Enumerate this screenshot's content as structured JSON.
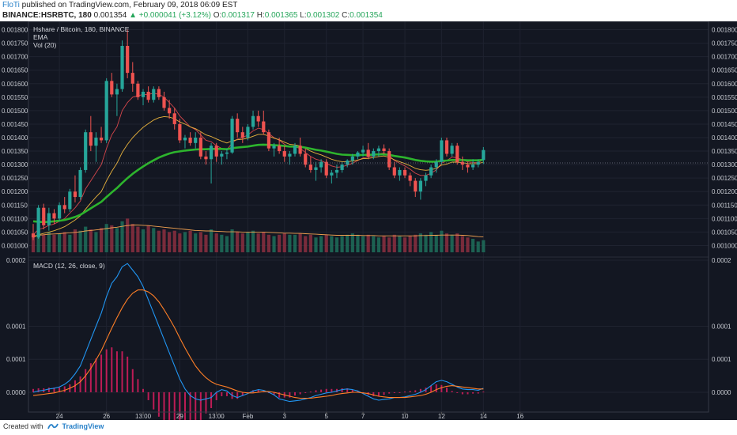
{
  "header": {
    "author": "FloTi",
    "published_text": "published on TradingView.com, February 09, 2018 06:09 EST",
    "symbol": "BINANCE:HSRBTC, 180",
    "last": "0.001354",
    "change": "▲ +0.000041 (+3.12%)",
    "o_label": "O:",
    "o_value": "0.001317",
    "h_label": "H:",
    "h_value": "0.001365",
    "l_label": "L:",
    "l_value": "0.001302",
    "c_label": "C:",
    "c_value": "0.001354"
  },
  "legend": {
    "title": "Hshare / Bitcoin, 180, BINANCE",
    "ema": "EMA",
    "vol": "Vol (20)",
    "macd": "MACD (12, 26, close, 9)"
  },
  "price_axis": [
    "0.001800",
    "0.001750",
    "0.001700",
    "0.001650",
    "0.001600",
    "0.001550",
    "0.001500",
    "0.001450",
    "0.001400",
    "0.001350",
    "0.001300",
    "0.001250",
    "0.001200",
    "0.001150",
    "0.001100",
    "0.001050",
    "0.001000"
  ],
  "macd_axis": [
    "0.0002",
    "0.0001",
    "0.0001",
    "0.0000"
  ],
  "time_axis": [
    "24",
    "26",
    "13:00",
    "29",
    "13:00",
    "Feb",
    "3",
    "5",
    "7",
    "10",
    "12",
    "14",
    "16"
  ],
  "footer": {
    "created_with": "Created with",
    "brand": "TradingView"
  },
  "colors": {
    "background": "#131722",
    "up": "#26a69a",
    "down": "#ef5350",
    "ema_slow": "#2db42d",
    "macd_line": "#2196f3",
    "signal_line": "#ff7f27",
    "histogram": "#e91e63"
  },
  "chart_data": {
    "type": "candlestick",
    "price_range": [
      0.000975,
      0.001825
    ],
    "macd_range": [
      -3e-05,
      0.0002
    ],
    "candles": [
      [
        0.001045,
        0.00108,
        0.00102,
        0.00103
      ],
      [
        0.00103,
        0.00115,
        0.001025,
        0.00114
      ],
      [
        0.00114,
        0.001155,
        0.00106,
        0.001075
      ],
      [
        0.001075,
        0.00114,
        0.001055,
        0.00112
      ],
      [
        0.00112,
        0.001135,
        0.00108,
        0.0011
      ],
      [
        0.0011,
        0.00116,
        0.00109,
        0.00115
      ],
      [
        0.00115,
        0.00118,
        0.00112,
        0.001135
      ],
      [
        0.001135,
        0.00121,
        0.001125,
        0.0012
      ],
      [
        0.0012,
        0.00126,
        0.00116,
        0.00118
      ],
      [
        0.00118,
        0.00129,
        0.00117,
        0.00128
      ],
      [
        0.00128,
        0.00143,
        0.00127,
        0.00142
      ],
      [
        0.00142,
        0.00148,
        0.00135,
        0.00137
      ],
      [
        0.00137,
        0.00142,
        0.00131,
        0.0014
      ],
      [
        0.0014,
        0.00144,
        0.00138,
        0.00139
      ],
      [
        0.00139,
        0.00162,
        0.00138,
        0.00161
      ],
      [
        0.00161,
        0.00164,
        0.00155,
        0.00156
      ],
      [
        0.00156,
        0.0016,
        0.00148,
        0.00158
      ],
      [
        0.00158,
        0.00176,
        0.00157,
        0.00174
      ],
      [
        0.00174,
        0.0018,
        0.00162,
        0.00164
      ],
      [
        0.00164,
        0.00168,
        0.00157,
        0.0016
      ],
      [
        0.0016,
        0.00161,
        0.00154,
        0.00155
      ],
      [
        0.00155,
        0.00158,
        0.00152,
        0.00157
      ],
      [
        0.00157,
        0.00159,
        0.00153,
        0.00154
      ],
      [
        0.00154,
        0.00159,
        0.00153,
        0.00158
      ],
      [
        0.00158,
        0.00159,
        0.00154,
        0.00155
      ],
      [
        0.00155,
        0.00157,
        0.0015,
        0.00151
      ],
      [
        0.00151,
        0.00154,
        0.00147,
        0.00149
      ],
      [
        0.00149,
        0.00151,
        0.00143,
        0.00145
      ],
      [
        0.00145,
        0.00147,
        0.00138,
        0.00139
      ],
      [
        0.00139,
        0.00141,
        0.00136,
        0.0014
      ],
      [
        0.0014,
        0.00142,
        0.00137,
        0.00138
      ],
      [
        0.00138,
        0.00142,
        0.00136,
        0.0014
      ],
      [
        0.0014,
        0.00142,
        0.00132,
        0.00133
      ],
      [
        0.00133,
        0.00135,
        0.0013,
        0.00132
      ],
      [
        0.00132,
        0.00138,
        0.00123,
        0.00137
      ],
      [
        0.00137,
        0.00138,
        0.00131,
        0.00133
      ],
      [
        0.00133,
        0.00135,
        0.0013,
        0.00134
      ],
      [
        0.00134,
        0.00136,
        0.00132,
        0.001345
      ],
      [
        0.001345,
        0.00148,
        0.00134,
        0.00147
      ],
      [
        0.00147,
        0.00149,
        0.0014,
        0.00142
      ],
      [
        0.00142,
        0.00144,
        0.00138,
        0.0014
      ],
      [
        0.0014,
        0.00145,
        0.00139,
        0.00144
      ],
      [
        0.00144,
        0.0015,
        0.00143,
        0.00148
      ],
      [
        0.00148,
        0.0015,
        0.00144,
        0.00146
      ],
      [
        0.00146,
        0.0015,
        0.00141,
        0.00142
      ],
      [
        0.00142,
        0.00143,
        0.00135,
        0.00136
      ],
      [
        0.00136,
        0.00138,
        0.00133,
        0.00137
      ],
      [
        0.00137,
        0.0014,
        0.00134,
        0.00135
      ],
      [
        0.00135,
        0.00137,
        0.00131,
        0.00133
      ],
      [
        0.00133,
        0.00135,
        0.0013,
        0.00134
      ],
      [
        0.00134,
        0.00138,
        0.00133,
        0.00137
      ],
      [
        0.00137,
        0.0014,
        0.00133,
        0.00134
      ],
      [
        0.00134,
        0.00136,
        0.00129,
        0.0013
      ],
      [
        0.0013,
        0.00133,
        0.00127,
        0.00128
      ],
      [
        0.00128,
        0.00131,
        0.00124,
        0.00129
      ],
      [
        0.00129,
        0.00132,
        0.00127,
        0.00131
      ],
      [
        0.00131,
        0.00132,
        0.00125,
        0.00126
      ],
      [
        0.00126,
        0.00128,
        0.00123,
        0.00127
      ],
      [
        0.00127,
        0.0013,
        0.00125,
        0.00128
      ],
      [
        0.00128,
        0.00131,
        0.00127,
        0.0013
      ],
      [
        0.0013,
        0.00132,
        0.00129,
        0.001315
      ],
      [
        0.001315,
        0.00134,
        0.0013,
        0.00133
      ],
      [
        0.00133,
        0.00135,
        0.00132,
        0.001345
      ],
      [
        0.001345,
        0.00137,
        0.00133,
        0.001355
      ],
      [
        0.001355,
        0.00138,
        0.00132,
        0.00133
      ],
      [
        0.00133,
        0.00136,
        0.00132,
        0.00135
      ],
      [
        0.00135,
        0.00137,
        0.00133,
        0.00136
      ],
      [
        0.00136,
        0.001375,
        0.00134,
        0.00135
      ],
      [
        0.00135,
        0.00136,
        0.00128,
        0.00129
      ],
      [
        0.00129,
        0.00131,
        0.00125,
        0.00126
      ],
      [
        0.00126,
        0.00129,
        0.00124,
        0.00128
      ],
      [
        0.00128,
        0.00129,
        0.00125,
        0.00126
      ],
      [
        0.00126,
        0.00127,
        0.00122,
        0.00124
      ],
      [
        0.00124,
        0.00125,
        0.00118,
        0.0012
      ],
      [
        0.0012,
        0.00125,
        0.00117,
        0.00124
      ],
      [
        0.00124,
        0.00127,
        0.00122,
        0.00126
      ],
      [
        0.00126,
        0.0013,
        0.00125,
        0.00129
      ],
      [
        0.00129,
        0.00132,
        0.00127,
        0.00131
      ],
      [
        0.00131,
        0.0014,
        0.0013,
        0.00139
      ],
      [
        0.00139,
        0.0014,
        0.00133,
        0.00134
      ],
      [
        0.00134,
        0.00138,
        0.00133,
        0.00137
      ],
      [
        0.00137,
        0.00138,
        0.0013,
        0.00131
      ],
      [
        0.00131,
        0.00133,
        0.00128,
        0.0013
      ],
      [
        0.0013,
        0.00131,
        0.00127,
        0.00129
      ],
      [
        0.00129,
        0.00132,
        0.00128,
        0.0013
      ],
      [
        0.0013,
        0.00132,
        0.00129,
        0.00131
      ],
      [
        0.001317,
        0.001365,
        0.001302,
        0.001354
      ]
    ],
    "volumes": [
      0.00103,
      0.00106,
      0.00104,
      0.00105,
      0.00104,
      0.001045,
      0.00105,
      0.00104,
      0.00106,
      0.001055,
      0.00107,
      0.00106,
      0.00105,
      0.001065,
      0.00108,
      0.001075,
      0.001065,
      0.00109,
      0.0011,
      0.00108,
      0.00107,
      0.00106,
      0.001075,
      0.001065,
      0.001055,
      0.00106,
      0.00105,
      0.001055,
      0.001045,
      0.00105,
      0.001055,
      0.001045,
      0.00105,
      0.00104,
      0.00106,
      0.001045,
      0.00104,
      0.001035,
      0.00106,
      0.00105,
      0.001045,
      0.00105,
      0.001055,
      0.001045,
      0.00105,
      0.00104,
      0.001035,
      0.00104,
      0.001045,
      0.00104,
      0.00104,
      0.001045,
      0.001035,
      0.00104,
      0.00103,
      0.001035,
      0.00104,
      0.001035,
      0.00103,
      0.001035,
      0.00104,
      0.001045,
      0.00104,
      0.001035,
      0.00104,
      0.001035,
      0.00103,
      0.001035,
      0.00103,
      0.00104,
      0.001035,
      0.00103,
      0.001035,
      0.00104,
      0.001045,
      0.00104,
      0.00105,
      0.00104,
      0.001055,
      0.001045,
      0.00104,
      0.001045,
      0.001035,
      0.00103,
      0.001025,
      0.001015,
      0.00102
    ],
    "ema_fast": [
      0.00104,
      0.00106,
      0.001065,
      0.001075,
      0.00108,
      0.00109,
      0.0011,
      0.00112,
      0.00114,
      0.001165,
      0.00121,
      0.00124,
      0.00127,
      0.0013,
      0.00136,
      0.00141,
      0.00144,
      0.0015,
      0.00153,
      0.00155,
      0.001555,
      0.00156,
      0.00156,
      0.001565,
      0.00156,
      0.00155,
      0.00153,
      0.00151,
      0.00148,
      0.00146,
      0.00144,
      0.00143,
      0.00141,
      0.00139,
      0.001385,
      0.00137,
      0.00136,
      0.001355,
      0.00138,
      0.001395,
      0.0014,
      0.00141,
      0.001425,
      0.001435,
      0.00143,
      0.001415,
      0.0014,
      0.00139,
      0.001375,
      0.001365,
      0.001365,
      0.00136,
      0.001345,
      0.00133,
      0.00132,
      0.001315,
      0.001305,
      0.001295,
      0.00129,
      0.001292,
      0.001298,
      0.001305,
      0.001315,
      0.001325,
      0.001328,
      0.001333,
      0.00134,
      0.001343,
      0.001333,
      0.001315,
      0.001305,
      0.001295,
      0.001283,
      0.001268,
      0.00126,
      0.00126,
      0.001268,
      0.00128,
      0.001305,
      0.001315,
      0.001328,
      0.001325,
      0.001318,
      0.00131,
      0.001308,
      0.001308,
      0.001318
    ],
    "ema_mid": [
      0.00103,
      0.00104,
      0.001045,
      0.00105,
      0.001055,
      0.001062,
      0.00107,
      0.001082,
      0.001095,
      0.00111,
      0.001135,
      0.001158,
      0.00118,
      0.0012,
      0.00124,
      0.001275,
      0.001305,
      0.001345,
      0.001375,
      0.0014,
      0.00142,
      0.001438,
      0.001452,
      0.001465,
      0.001474,
      0.001478,
      0.001476,
      0.00147,
      0.001458,
      0.00145,
      0.00144,
      0.001433,
      0.001422,
      0.00141,
      0.001404,
      0.001395,
      0.001387,
      0.00138,
      0.001388,
      0.001392,
      0.001394,
      0.001398,
      0.001405,
      0.001412,
      0.001412,
      0.001406,
      0.001398,
      0.001392,
      0.001383,
      0.001375,
      0.001373,
      0.001369,
      0.00136,
      0.00135,
      0.001342,
      0.001336,
      0.001328,
      0.00132,
      0.001314,
      0.001311,
      0.001311,
      0.001313,
      0.001317,
      0.001322,
      0.001323,
      0.001326,
      0.00133,
      0.001332,
      0.001327,
      0.001318,
      0.001311,
      0.001304,
      0.001296,
      0.001286,
      0.001281,
      0.001279,
      0.001281,
      0.001286,
      0.001298,
      0.001302,
      0.001309,
      0.001309,
      0.001307,
      0.001304,
      0.001303,
      0.001304,
      0.001309
    ],
    "ema_slow": [
      0.00109,
      0.001088,
      0.001087,
      0.001088,
      0.00109,
      0.001092,
      0.001095,
      0.0011,
      0.001106,
      0.001114,
      0.001126,
      0.001138,
      0.00115,
      0.001162,
      0.00118,
      0.001197,
      0.001213,
      0.001232,
      0.00125,
      0.001266,
      0.00128,
      0.001293,
      0.001305,
      0.001316,
      0.001326,
      0.001334,
      0.001341,
      0.001346,
      0.001349,
      0.001352,
      0.001354,
      0.001356,
      0.001357,
      0.001357,
      0.001358,
      0.001358,
      0.001358,
      0.001357,
      0.001361,
      0.001363,
      0.001365,
      0.001367,
      0.00137,
      0.001373,
      0.001374,
      0.001373,
      0.001372,
      0.001371,
      0.001369,
      0.001367,
      0.001367,
      0.001366,
      0.001363,
      0.001359,
      0.001355,
      0.001352,
      0.001348,
      0.001344,
      0.00134,
      0.001337,
      0.001336,
      0.001335,
      0.001335,
      0.001336,
      0.001336,
      0.001337,
      0.001338,
      0.001338,
      0.001336,
      0.001332,
      0.001329,
      0.001326,
      0.001322,
      0.001317,
      0.001314,
      0.001312,
      0.001311,
      0.001311,
      0.001314,
      0.001315,
      0.001317,
      0.001317,
      0.001317,
      0.001316,
      0.001316,
      0.001316,
      0.001318
    ],
    "vol_ma": [
      0.001035,
      0.001038,
      0.00104,
      0.001042,
      0.001043,
      0.001044,
      0.001046,
      0.001047,
      0.001049,
      0.001051,
      0.001054,
      0.001056,
      0.001058,
      0.00106,
      0.001063,
      0.001066,
      0.001068,
      0.001071,
      0.001074,
      0.001076,
      0.001076,
      0.001075,
      0.001074,
      0.001072,
      0.00107,
      0.001068,
      0.001066,
      0.001064,
      0.001062,
      0.00106,
      0.001058,
      0.001056,
      0.001055,
      0.001054,
      0.001054,
      0.001053,
      0.001052,
      0.001051,
      0.001051,
      0.001051,
      0.00105,
      0.00105,
      0.00105,
      0.00105,
      0.00105,
      0.001049,
      0.001048,
      0.001047,
      0.001046,
      0.001046,
      0.001045,
      0.001045,
      0.001044,
      0.001043,
      0.001042,
      0.001041,
      0.00104,
      0.001039,
      0.001038,
      0.001038,
      0.001038,
      0.001038,
      0.001038,
      0.001037,
      0.001037,
      0.001037,
      0.001036,
      0.001036,
      0.001036,
      0.001036,
      0.001036,
      0.001036,
      0.001036,
      0.001036,
      0.001037,
      0.001037,
      0.001038,
      0.001038,
      0.001039,
      0.001039,
      0.001039,
      0.001039,
      0.001038,
      0.001037,
      0.001035,
      0.001033,
      0.001032
    ],
    "macd": [
      0.0,
      2e-06,
      3e-06,
      5e-06,
      6e-06,
      8e-06,
      1.2e-05,
      1.8e-05,
      2.8e-05,
      4e-05,
      6e-05,
      8e-05,
      0.0001,
      0.00012,
      0.000145,
      0.000165,
      0.000175,
      0.00019,
      0.000195,
      0.000185,
      0.000175,
      0.00016,
      0.00014,
      0.00012,
      0.0001,
      8e-05,
      6e-05,
      4e-05,
      2e-05,
      5e-06,
      -5e-06,
      -1e-05,
      -1.2e-05,
      -1e-05,
      -8e-06,
      0.0,
      4e-06,
      2e-06,
      -5e-06,
      -8e-06,
      -5e-06,
      -2e-06,
      2e-06,
      4e-06,
      3e-06,
      0.0,
      -4e-06,
      -1e-05,
      -1.2e-05,
      -1.4e-05,
      -1.3e-05,
      -1.2e-05,
      -1e-05,
      -8e-06,
      -5e-06,
      -3e-06,
      -1e-06,
      0.0,
      2e-06,
      4e-06,
      5e-06,
      4e-06,
      2e-06,
      -2e-06,
      -6e-06,
      -1e-05,
      -1.2e-05,
      -1.1e-05,
      -1e-05,
      -8e-06,
      -8e-06,
      -7e-06,
      -5e-06,
      -3e-06,
      0.0,
      4e-06,
      1e-05,
      1.6e-05,
      1.8e-05,
      1.6e-05,
      1.2e-05,
      8e-06,
      5e-06,
      4e-06,
      4e-06,
      3e-06,
      6e-06
    ],
    "signal": [
      -5e-06,
      -4e-06,
      -3e-06,
      -2e-06,
      -1e-06,
      1e-06,
      3e-06,
      6e-06,
      1e-05,
      1.6e-05,
      2.5e-05,
      3.6e-05,
      4.9e-05,
      6.3e-05,
      8e-05,
      9.7e-05,
      0.000113,
      0.000128,
      0.000141,
      0.00015,
      0.000155,
      0.000155,
      0.000152,
      0.000146,
      0.000137,
      0.000125,
      0.000112,
      9.8e-05,
      8.2e-05,
      6.7e-05,
      5.3e-05,
      4e-05,
      3e-05,
      2.2e-05,
      1.6e-05,
      1.2e-05,
      1e-05,
      8e-06,
      5e-06,
      2e-06,
      0.0,
      -1e-06,
      -1e-06,
      0.0,
      1e-06,
      1e-06,
      0.0,
      -2e-06,
      -4e-06,
      -6e-06,
      -8e-06,
      -9e-06,
      -9e-06,
      -9e-06,
      -8e-06,
      -7e-06,
      -6e-06,
      -5e-06,
      -3e-06,
      -2e-06,
      -1e-06,
      0.0,
      0.0,
      -1e-06,
      -2e-06,
      -4e-06,
      -6e-06,
      -7e-06,
      -8e-06,
      -8e-06,
      -8e-06,
      -8e-06,
      -7e-06,
      -6e-06,
      -5e-06,
      -3e-06,
      0.0,
      4e-06,
      7e-06,
      9e-06,
      1e-05,
      9e-06,
      8e-06,
      7e-06,
      6e-06,
      5e-06,
      5e-06
    ]
  }
}
